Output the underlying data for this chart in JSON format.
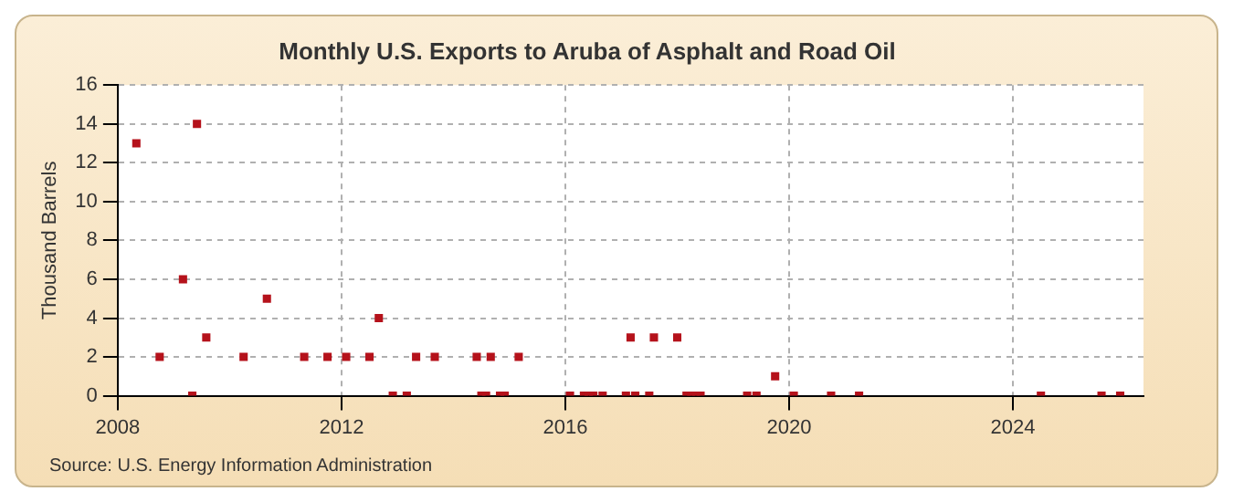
{
  "chart_data": {
    "type": "scatter",
    "title": "Monthly U.S. Exports to Aruba of Asphalt and Road Oil",
    "ylabel": "Thousand Barrels",
    "annotations": [
      "Source: U.S. Energy Information Administration"
    ],
    "x": [
      "2008-05",
      "2008-10",
      "2009-03",
      "2009-05",
      "2009-06",
      "2009-08",
      "2010-04",
      "2010-09",
      "2011-05",
      "2011-10",
      "2012-02",
      "2012-07",
      "2012-09",
      "2012-12",
      "2013-03",
      "2013-05",
      "2013-09",
      "2014-06",
      "2014-07",
      "2014-08",
      "2014-09",
      "2014-11",
      "2014-12",
      "2015-03",
      "2016-02",
      "2016-05",
      "2016-06",
      "2016-07",
      "2016-09",
      "2017-02",
      "2017-03",
      "2017-04",
      "2017-07",
      "2017-08",
      "2018-01",
      "2018-03",
      "2018-04",
      "2018-05",
      "2018-06",
      "2019-04",
      "2019-06",
      "2019-10",
      "2020-02",
      "2020-10",
      "2021-04",
      "2024-07",
      "2025-08",
      "2025-12"
    ],
    "series": [
      {
        "color": "#b5121b",
        "values": [
          13,
          2,
          6,
          0,
          14,
          3,
          2,
          5,
          2,
          2,
          2,
          2,
          4,
          0,
          0,
          2,
          2,
          2,
          0,
          0,
          2,
          0,
          0,
          2,
          0,
          0,
          0,
          0,
          0,
          0,
          3,
          0,
          0,
          3,
          3,
          0,
          0,
          0,
          0,
          0,
          0,
          1,
          0,
          0,
          0,
          0,
          0,
          0
        ]
      }
    ],
    "xlim": [
      "2008",
      "2026-05"
    ],
    "xticks": [
      {
        "value": "2008",
        "label": "2008"
      },
      {
        "value": "2012",
        "label": "2012"
      },
      {
        "value": "2016",
        "label": "2016"
      },
      {
        "value": "2020",
        "label": "2020"
      },
      {
        "value": "2024",
        "label": "2024"
      }
    ],
    "ylim": [
      0,
      16
    ],
    "yticks": [
      0,
      2,
      4,
      6,
      8,
      10,
      12,
      14,
      16
    ],
    "grid": true,
    "marker": "square",
    "legend": false
  }
}
